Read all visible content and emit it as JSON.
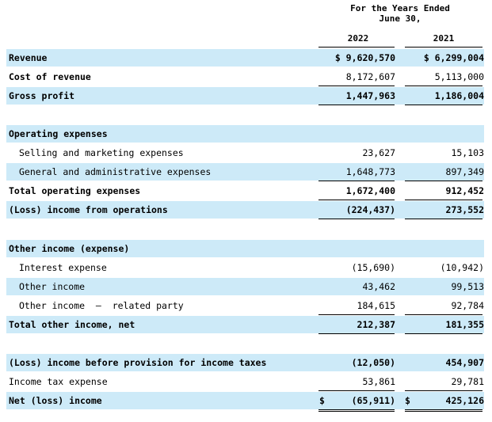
{
  "header": {
    "period_line1": "For the Years Ended",
    "period_line2": "June 30,",
    "year1": "2022",
    "year2": "2021"
  },
  "rows": [
    {
      "label": "Revenue",
      "v1": "$ 9,620,570",
      "v2": "$ 6,299,004"
    },
    {
      "label": "Cost of revenue",
      "v1": "8,172,607",
      "v2": "5,113,000"
    },
    {
      "label": "Gross profit",
      "v1": "1,447,963",
      "v2": "1,186,004"
    },
    {
      "label": "Operating expenses",
      "v1": "",
      "v2": ""
    },
    {
      "label": "Selling and marketing expenses",
      "v1": "23,627",
      "v2": "15,103"
    },
    {
      "label": "General and administrative expenses",
      "v1": "1,648,773",
      "v2": "897,349"
    },
    {
      "label": "Total operating expenses",
      "v1": "1,672,400",
      "v2": "912,452"
    },
    {
      "label": "(Loss) income from operations",
      "v1": "(224,437)",
      "v2": "273,552"
    },
    {
      "label": "Other income (expense)",
      "v1": "",
      "v2": ""
    },
    {
      "label": "Interest expense",
      "v1": "(15,690)",
      "v2": "(10,942)"
    },
    {
      "label": "Other income",
      "v1": "43,462",
      "v2": "99,513"
    },
    {
      "label": "Other income  –  related party",
      "v1": "184,615",
      "v2": "92,784"
    },
    {
      "label": "Total other income, net",
      "v1": "212,387",
      "v2": "181,355"
    },
    {
      "label": "(Loss) income before provision for income taxes",
      "v1": "(12,050)",
      "v2": "454,907"
    },
    {
      "label": "Income tax expense",
      "v1": "53,861",
      "v2": "29,781"
    },
    {
      "label": "Net (loss) income",
      "v1": "(65,911)",
      "v2": "425,126",
      "c1": "$",
      "c2": "$"
    }
  ]
}
